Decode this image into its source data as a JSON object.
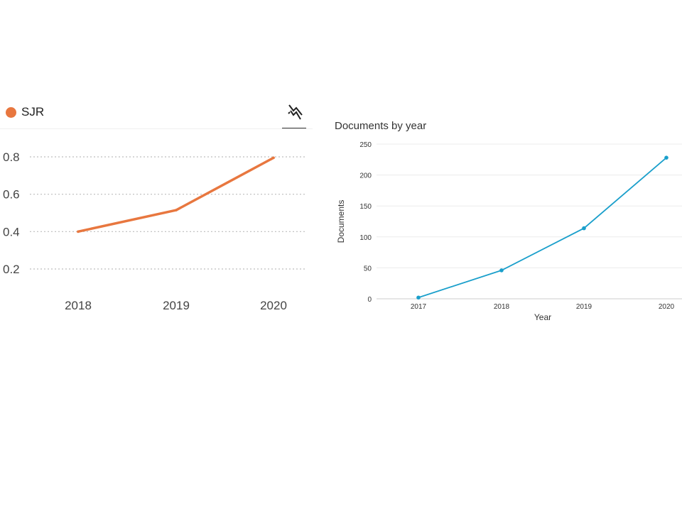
{
  "chart_data": [
    {
      "type": "line",
      "legend": "SJR",
      "color": "#e8773f",
      "x": [
        "2018",
        "2019",
        "2020"
      ],
      "y": [
        0.4,
        0.515,
        0.795
      ],
      "yticks": [
        "0.2",
        "0.4",
        "0.6",
        "0.8"
      ],
      "ylim": [
        0.1,
        0.9
      ],
      "grid": true,
      "legend_position": "top-left",
      "toolbar_icon": "trend-toggle-icon"
    },
    {
      "type": "line",
      "title": "Documents by year",
      "xlabel": "Year",
      "ylabel": "Documents",
      "color": "#1a9fcb",
      "x": [
        "2017",
        "2018",
        "2019",
        "2020"
      ],
      "y": [
        2,
        46,
        114,
        228
      ],
      "yticks": [
        "0",
        "50",
        "100",
        "150",
        "200",
        "250"
      ],
      "ylim": [
        0,
        250
      ],
      "grid": true
    }
  ]
}
